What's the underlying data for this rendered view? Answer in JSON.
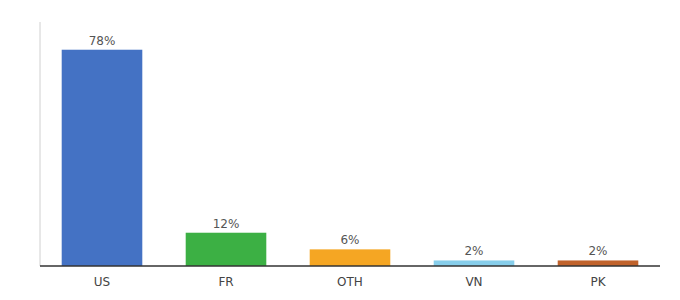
{
  "chart_data": {
    "type": "bar",
    "categories": [
      "US",
      "FR",
      "OTH",
      "VN",
      "PK"
    ],
    "values": [
      78,
      12,
      6,
      2,
      2
    ],
    "value_labels": [
      "78%",
      "12%",
      "6%",
      "2%",
      "2%"
    ],
    "colors": [
      "#4472c4",
      "#3cb044",
      "#f5a623",
      "#87ceeb",
      "#c0622b"
    ],
    "ylim": [
      0,
      88
    ],
    "data_labels": true,
    "tick_labels": "x"
  }
}
